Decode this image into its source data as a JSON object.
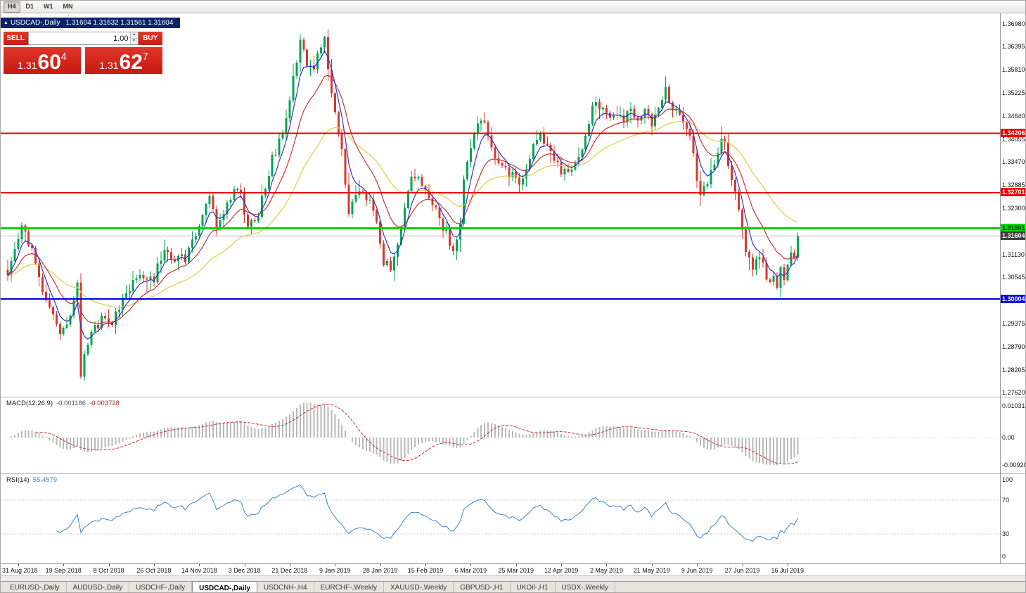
{
  "toolbar": {
    "periods": [
      {
        "label": "H4",
        "active": true
      },
      {
        "label": "D1",
        "active": false
      },
      {
        "label": "W1",
        "active": false
      },
      {
        "label": "MN",
        "active": false
      }
    ]
  },
  "window": {
    "collapse_icon": "▲",
    "symbol": "USDCAD-,Daily",
    "ohlc": "1.31604 1.31632 1.31561 1.31604"
  },
  "icons": {
    "spin_up": "▲",
    "spin_down": "▼"
  },
  "trade": {
    "sell_label": "SELL",
    "buy_label": "BUY",
    "volume": "1.00",
    "sell_price": {
      "prefix": "1.31",
      "big": "60",
      "pip": "4"
    },
    "buy_price": {
      "prefix": "1.31",
      "big": "62",
      "pip": "7"
    }
  },
  "chart_data": {
    "type": "candlestick",
    "symbol": "USDCAD",
    "timeframe": "Daily",
    "colors": {
      "up": "#00a551",
      "down": "#d7382d",
      "ma_fast": "#3333cc",
      "ma_mid": "#c8323c",
      "ma_slow": "#e0cc44",
      "level_red": "#e80000",
      "level_green": "#00d800",
      "level_blue": "#0000e0",
      "macd_hist": "#b9b9b9",
      "macd_signal": "#c03030",
      "rsi_line": "#3e83c5",
      "current_price_line": "#b0b0b0"
    },
    "price_axis": {
      "ticks": [
        "1.36980",
        "1.36395",
        "1.35810",
        "1.35225",
        "1.34640",
        "1.34055",
        "1.33470",
        "1.32885",
        "1.32300",
        "1.31715",
        "1.31130",
        "1.30545",
        "1.29960",
        "1.29375",
        "1.28790",
        "1.28205",
        "1.27620"
      ]
    },
    "levels": [
      {
        "value": 1.34206,
        "label": "1.34206",
        "color": "#e80000",
        "text": "#ffffff",
        "width": 2
      },
      {
        "value": 1.32701,
        "label": "1.32701",
        "color": "#e80000",
        "text": "#ffffff",
        "width": 2
      },
      {
        "value": 1.31801,
        "label": "1.31801",
        "color": "#00d800",
        "text": "#063306",
        "width": 3
      },
      {
        "value": 1.30004,
        "label": "1.30004",
        "color": "#0000e0",
        "text": "#ffffff",
        "width": 2
      }
    ],
    "current_price": {
      "value": 1.31604,
      "label": "1.31604"
    },
    "price": {
      "bars": 228,
      "waypoints": [
        [
          0,
          1.306
        ],
        [
          4,
          1.318
        ],
        [
          7,
          1.312
        ],
        [
          10,
          1.303
        ],
        [
          13,
          1.2955
        ],
        [
          15,
          1.29
        ],
        [
          17,
          1.293
        ],
        [
          19,
          1.3005
        ],
        [
          20,
          1.303
        ],
        [
          21,
          1.2815
        ],
        [
          22,
          1.286
        ],
        [
          24,
          1.2915
        ],
        [
          27,
          1.295
        ],
        [
          30,
          1.294
        ],
        [
          33,
          1.2995
        ],
        [
          36,
          1.3045
        ],
        [
          39,
          1.306
        ],
        [
          42,
          1.3055
        ],
        [
          45,
          1.3125
        ],
        [
          48,
          1.3105
        ],
        [
          51,
          1.31
        ],
        [
          54,
          1.316
        ],
        [
          56,
          1.3215
        ],
        [
          58,
          1.325
        ],
        [
          60,
          1.319
        ],
        [
          63,
          1.324
        ],
        [
          65,
          1.329
        ],
        [
          67,
          1.326
        ],
        [
          69,
          1.3195
        ],
        [
          71,
          1.3185
        ],
        [
          73,
          1.325
        ],
        [
          76,
          1.3355
        ],
        [
          78,
          1.3395
        ],
        [
          80,
          1.346
        ],
        [
          82,
          1.356
        ],
        [
          84,
          1.3655
        ],
        [
          86,
          1.3605
        ],
        [
          88,
          1.3575
        ],
        [
          90,
          1.365
        ],
        [
          91,
          1.3655
        ],
        [
          92,
          1.3595
        ],
        [
          94,
          1.3475
        ],
        [
          96,
          1.338
        ],
        [
          98,
          1.3225
        ],
        [
          100,
          1.3255
        ],
        [
          102,
          1.327
        ],
        [
          104,
          1.3245
        ],
        [
          106,
          1.319
        ],
        [
          108,
          1.3095
        ],
        [
          110,
          1.3075
        ],
        [
          112,
          1.313
        ],
        [
          114,
          1.324
        ],
        [
          116,
          1.3305
        ],
        [
          118,
          1.331
        ],
        [
          120,
          1.328
        ],
        [
          122,
          1.324
        ],
        [
          124,
          1.3205
        ],
        [
          126,
          1.3165
        ],
        [
          128,
          1.313
        ],
        [
          130,
          1.319
        ],
        [
          131,
          1.33
        ],
        [
          133,
          1.339
        ],
        [
          135,
          1.345
        ],
        [
          137,
          1.3445
        ],
        [
          139,
          1.339
        ],
        [
          141,
          1.3345
        ],
        [
          143,
          1.333
        ],
        [
          145,
          1.331
        ],
        [
          147,
          1.329
        ],
        [
          149,
          1.333
        ],
        [
          151,
          1.34
        ],
        [
          153,
          1.3415
        ],
        [
          155,
          1.3385
        ],
        [
          157,
          1.335
        ],
        [
          159,
          1.3325
        ],
        [
          161,
          1.333
        ],
        [
          163,
          1.334
        ],
        [
          165,
          1.337
        ],
        [
          167,
          1.3455
        ],
        [
          169,
          1.35
        ],
        [
          171,
          1.348
        ],
        [
          173,
          1.345
        ],
        [
          175,
          1.3465
        ],
        [
          177,
          1.345
        ],
        [
          179,
          1.348
        ],
        [
          181,
          1.345
        ],
        [
          183,
          1.3475
        ],
        [
          185,
          1.3445
        ],
        [
          187,
          1.348
        ],
        [
          188,
          1.3515
        ],
        [
          189,
          1.355
        ],
        [
          190,
          1.3505
        ],
        [
          192,
          1.3475
        ],
        [
          194,
          1.345
        ],
        [
          196,
          1.3415
        ],
        [
          197,
          1.336
        ],
        [
          198,
          1.33
        ],
        [
          199,
          1.327
        ],
        [
          201,
          1.329
        ],
        [
          203,
          1.334
        ],
        [
          205,
          1.34
        ],
        [
          206,
          1.3405
        ],
        [
          207,
          1.335
        ],
        [
          209,
          1.327
        ],
        [
          211,
          1.318
        ],
        [
          212,
          1.313
        ],
        [
          214,
          1.308
        ],
        [
          216,
          1.31
        ],
        [
          218,
          1.3062
        ],
        [
          220,
          1.3048
        ],
        [
          221,
          1.304
        ],
        [
          222,
          1.3075
        ],
        [
          223,
          1.3055
        ],
        [
          224,
          1.3085
        ],
        [
          225,
          1.312
        ],
        [
          226,
          1.3105
        ],
        [
          227,
          1.31604
        ]
      ]
    },
    "moving_averages": [
      {
        "period": 34,
        "color": "#e0cc44"
      },
      {
        "period": 13,
        "color": "#c8323c"
      },
      {
        "period": 5,
        "color": "#3333cc"
      }
    ],
    "macd": {
      "label": "MACD(12,26,9)",
      "value": "-0.001186",
      "signal_value": "-0.003728",
      "fast": 12,
      "slow": 26,
      "signal": 9,
      "axis": [
        "0.01031",
        "0.00",
        "-0.00920"
      ]
    },
    "rsi": {
      "label": "RSI(14)",
      "value": "55.4579",
      "period": 14,
      "axis": [
        "100",
        "70",
        "30",
        "0"
      ],
      "levels": [
        70,
        30
      ]
    },
    "x_axis": {
      "labels": [
        "31 Aug 2018",
        "19 Sep 2018",
        "8 Oct 2018",
        "26 Oct 2018",
        "14 Nov 2018",
        "3 Dec 2018",
        "21 Dec 2018",
        "9 Jan 2019",
        "28 Jan 2019",
        "15 Feb 2019",
        "6 Mar 2019",
        "25 Mar 2019",
        "12 Apr 2019",
        "2 May 2019",
        "21 May 2019",
        "9 Jun 2019",
        "27 Jun 2019",
        "16 Jul 2019"
      ]
    }
  },
  "tabs": {
    "items": [
      {
        "label": "EURUSD-,Daily",
        "active": false
      },
      {
        "label": "AUDUSD-,Daily",
        "active": false
      },
      {
        "label": "USDCHF-,Daily",
        "active": false
      },
      {
        "label": "USDCAD-,Daily",
        "active": true
      },
      {
        "label": "USDCNH-,H4",
        "active": false
      },
      {
        "label": "EURCHF-,Weekly",
        "active": false
      },
      {
        "label": "XAUUSD-,Weekly",
        "active": false
      },
      {
        "label": "GBPUSD-,H1",
        "active": false
      },
      {
        "label": "UKOil-,H1",
        "active": false
      },
      {
        "label": "USDX-,Weekly",
        "active": false
      }
    ]
  }
}
